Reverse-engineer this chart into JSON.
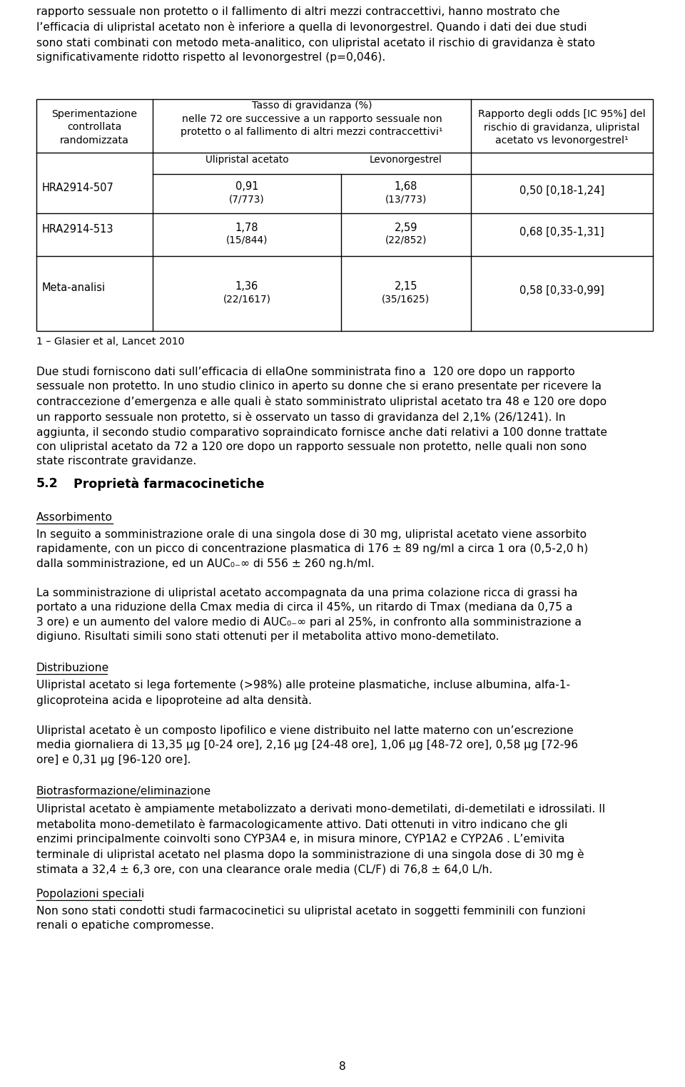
{
  "bg_color": "#ffffff",
  "text_color": "#000000",
  "lm": 0.053,
  "rm": 0.953,
  "body_fs": 11.2,
  "section_fs": 12.5,
  "table_fs_header": 10.2,
  "table_fs_cell": 10.5,
  "table_fs_sub": 9.8,
  "footnote_fs": 10.2,
  "top_text": "rapporto sessuale non protetto o il fallimento di altri mezzi contraccettivi, hanno mostrato che\nl’efficacia di ulipristal acetato non è inferiore a quella di levonorgestrel. Quando i dati dei due studi\nsono stati combinati con metodo meta-analitico, con ulipristal acetato il rischio di gravidanza è stato\nsignificativamente ridotto rispetto al levonorgestrel (p=0,046).",
  "body2": "Due studi forniscono dati sull’efficacia di ellaOne somministrata fino a  120 ore dopo un rapporto\nsessuale non protetto. In uno studio clinico in aperto su donne che si erano presentate per ricevere la\ncontraccezione d’emergenza e alle quali è stato somministrato ulipristal acetato tra 48 e 120 ore dopo\nun rapporto sessuale non protetto, si è osservato un tasso di gravidanza del 2,1% (26/1241). In\naggiunta, il secondo studio comparativo sopraindicato fornisce anche dati relativi a 100 donne trattate\ncon ulipristal acetato da 72 a 120 ore dopo un rapporto sessuale non protetto, nelle quali non sono\nstate riscontrate gravidanze.",
  "section52_num": "5.2",
  "section52_title": "Proprietà farmacocinetiche",
  "assorbimento_label": "Assorbimento",
  "body3": "In seguito a somministrazione orale di una singola dose di 30 mg, ulipristal acetato viene assorbito\nrapidamente, con un picco di concentrazione plasmatica di 176 ± 89 ng/ml a circa 1 ora (0,5-2,0 h)\ndalla somministrazione, ed un AUC₀₋∞ di 556 ± 260 ng.h/ml.",
  "body4": "La somministrazione di ulipristal acetato accompagnata da una prima colazione ricca di grassi ha\nportato a una riduzione della Cmax media di circa il 45%, un ritardo di Tmax (mediana da 0,75 a\n3 ore) e un aumento del valore medio di AUC₀₋∞ pari al 25%, in confronto alla somministrazione a\ndigiuno. Risultati simili sono stati ottenuti per il metabolita attivo mono-demetilato.",
  "distribuzione_label": "Distribuzione",
  "body5": "Ulipristal acetato si lega fortemente (>98%) alle proteine plasmatiche, incluse albumina, alfa-1-\nglicoproteina acida e lipoproteine ad alta densità.",
  "body6": "Ulipristal acetato è un composto lipofilico e viene distribuito nel latte materno con un’escrezione\nmedia giornaliera di 13,35 μg [0-24 ore], 2,16 μg [24-48 ore], 1,06 μg [48-72 ore], 0,58 μg [72-96\nore] e 0,31 μg [96-120 ore].",
  "biotras_label": "Biotrasformazione/eliminazione",
  "body7": "Ulipristal acetato è ampiamente metabolizzato a derivati mono-demetilati, di-demetilati e idrossilati. Il\nmetabolita mono-demetilato è farmacologicamente attivo. Dati ottenuti in vitro indicano che gli\nenzimi principalmente coinvolti sono CYP3A4 e, in misura minore, CYP1A2 e CYP2A6 . L’emivita\nterminale di ulipristal acetato nel plasma dopo la somministrazione di una singola dose di 30 mg è\nstimata a 32,4 ± 6,3 ore, con una clearance orale media (CL/F) di 76,8 ± 64,0 L/h.",
  "popolazioni_label": "Popolazioni speciali",
  "body8": "Non sono stati condotti studi farmacocinetici su ulipristal acetato in soggetti femminili con funzioni\nrenali o epatiche compromesse.",
  "page_number": "8",
  "table_col1_header": "Sperimentazione\ncontrollata\nrandomizzata",
  "table_col2_header": "Tasso di gravidanza (%)\nnelle 72 ore successive a un rapporto sessuale non\nprotetto o al fallimento di altri mezzi contraccettivi¹",
  "table_col2a_sub": "Ulipristal acetato",
  "table_col2b_sub": "Levonorgestrel",
  "table_col3_header": "Rapporto degli odds [IC 95%] del\nrischio di gravidanza, ulipristal\nacetato vs levonorgestrel¹",
  "table_rows": [
    {
      "label": "HRA2914-507",
      "ua": "0,91",
      "ua_sub": "(7/773)",
      "levo": "1,68",
      "levo_sub": "(13/773)",
      "odds": "0,50 [0,18-1,24]"
    },
    {
      "label": "HRA2914-513",
      "ua": "1,78",
      "ua_sub": "(15/844)",
      "levo": "2,59",
      "levo_sub": "(22/852)",
      "odds": "0,68 [0,35-1,31]"
    },
    {
      "label": "Meta-analisi",
      "ua": "1,36",
      "ua_sub": "(22/1617)",
      "levo": "2,15",
      "levo_sub": "(35/1625)",
      "odds": "0,58 [0,33-0,99]"
    }
  ],
  "table_footnote": "1 – Glasier et al, Lancet 2010"
}
